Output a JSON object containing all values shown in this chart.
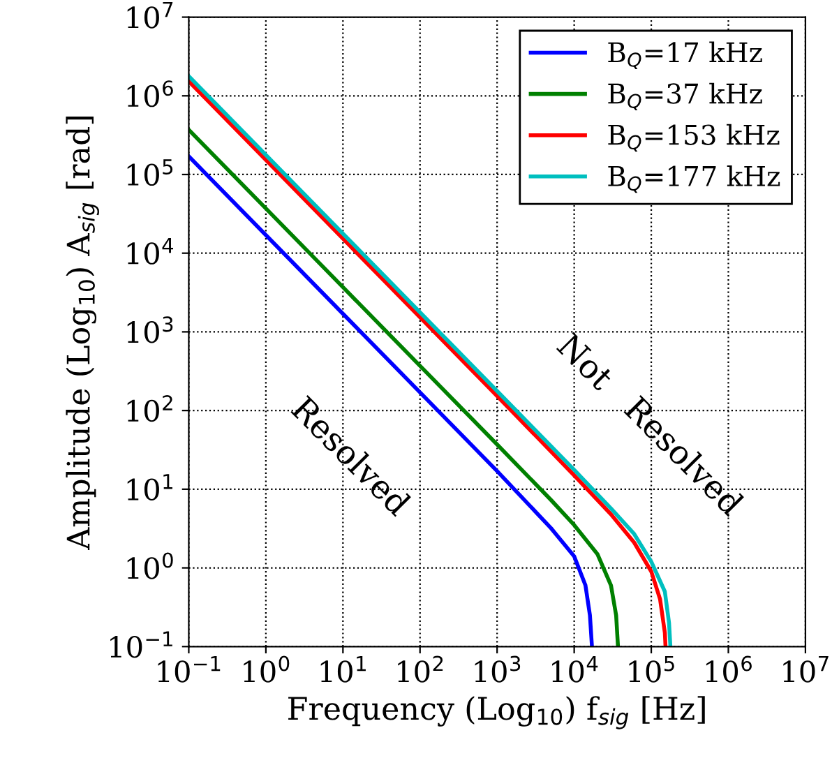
{
  "chart_data": {
    "type": "line",
    "xlabel": "Frequency (Log$_{10}$) f$_{sig}$ [Hz]",
    "ylabel": "Amplitude (Log$_{10}$) A$_{sig}$ [rad]",
    "log": "xy",
    "grid": true,
    "legend": "top right",
    "line_style": "solid",
    "marker": "none",
    "xlim": [
      0.1,
      10000000
    ],
    "ylim": [
      0.1,
      10000000
    ],
    "xticks": [
      {
        "value": 0.1,
        "label": "10$^{−1}$"
      },
      {
        "value": 1,
        "label": "10$^{0}$"
      },
      {
        "value": 10,
        "label": "10$^{1}$"
      },
      {
        "value": 100,
        "label": "10$^{2}$"
      },
      {
        "value": 1000,
        "label": "10$^{3}$"
      },
      {
        "value": 10000,
        "label": "10$^{4}$"
      },
      {
        "value": 100000,
        "label": "10$^{5}$"
      },
      {
        "value": 1000000,
        "label": "10$^{6}$"
      },
      {
        "value": 10000000,
        "label": "10$^{7}$"
      }
    ],
    "yticks": [
      {
        "value": 0.1,
        "label": "10$^{−1}$"
      },
      {
        "value": 1,
        "label": "10$^{0}$"
      },
      {
        "value": 10,
        "label": "10$^{1}$"
      },
      {
        "value": 100,
        "label": "10$^{2}$"
      },
      {
        "value": 1000,
        "label": "10$^{3}$"
      },
      {
        "value": 10000,
        "label": "10$^{4}$"
      },
      {
        "value": 100000,
        "label": "10$^{5}$"
      },
      {
        "value": 1000000,
        "label": "10$^{6}$"
      },
      {
        "value": 10000000,
        "label": "10$^{7}$"
      }
    ],
    "annotations": [
      "Resolved",
      "Not",
      "Resolved"
    ],
    "series": [
      {
        "name": "B$_{Q}$=17 kHz",
        "color": "#0000ff",
        "x": [
          0.1,
          1,
          10,
          100,
          1000,
          5000,
          10000,
          14000,
          16000,
          17000
        ],
        "values": [
          170000,
          17000,
          1700,
          170,
          17,
          3.2,
          1.4,
          0.6,
          0.25,
          0.1
        ]
      },
      {
        "name": "B$_{Q}$=37 kHz",
        "color": "#008000",
        "x": [
          0.1,
          1,
          10,
          100,
          1000,
          5000,
          10000,
          20000,
          30000,
          35000,
          37000
        ],
        "values": [
          370000,
          37000,
          3700,
          370,
          37,
          7.3,
          3.5,
          1.5,
          0.6,
          0.25,
          0.1
        ]
      },
      {
        "name": "B$_{Q}$=153 kHz",
        "color": "#ff0000",
        "x": [
          0.1,
          1,
          10,
          100,
          1000,
          10000,
          30000,
          60000,
          100000,
          130000,
          150000,
          153000
        ],
        "values": [
          1530000,
          153000,
          15300,
          1530,
          153,
          15,
          4.8,
          2.1,
          0.9,
          0.4,
          0.15,
          0.1
        ]
      },
      {
        "name": "B$_{Q}$=177 kHz",
        "color": "#00bfbf",
        "x": [
          0.1,
          1,
          10,
          100,
          1000,
          10000,
          30000,
          60000,
          100000,
          150000,
          170000,
          177000
        ],
        "values": [
          1770000,
          177000,
          17700,
          1770,
          177,
          17.6,
          5.7,
          2.7,
          1.2,
          0.5,
          0.2,
          0.1
        ]
      }
    ]
  }
}
